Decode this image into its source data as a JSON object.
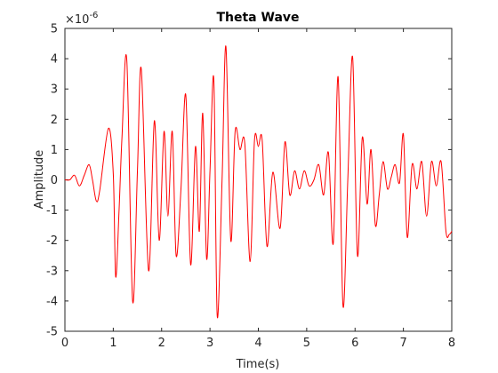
{
  "chart_data": {
    "type": "line",
    "title": "Theta Wave",
    "xlabel": "Time(s)",
    "ylabel": "Amplitude",
    "y_exponent_label": "×10",
    "y_exponent_power": "-6",
    "xlim": [
      0,
      8
    ],
    "ylim": [
      -5,
      5
    ],
    "grid": false,
    "x_ticks": [
      0,
      1,
      2,
      3,
      4,
      5,
      6,
      7,
      8
    ],
    "x_tick_labels": [
      "0",
      "1",
      "2",
      "3",
      "4",
      "5",
      "6",
      "7",
      "8"
    ],
    "y_ticks": [
      -5,
      -4,
      -3,
      -2,
      -1,
      0,
      1,
      2,
      3,
      4,
      5
    ],
    "y_tick_labels": [
      "-5",
      "-4",
      "-3",
      "-2",
      "-1",
      "0",
      "1",
      "2",
      "3",
      "4",
      "5"
    ],
    "series": [
      {
        "color": "#ff0000",
        "x": [
          0,
          0.1,
          0.2,
          0.3,
          0.4,
          0.5,
          0.57,
          0.65,
          0.72,
          0.9,
          1.0,
          1.05,
          1.12,
          1.18,
          1.28,
          1.4,
          1.5,
          1.58,
          1.73,
          1.85,
          1.95,
          2.05,
          2.13,
          2.22,
          2.3,
          2.4,
          2.5,
          2.6,
          2.7,
          2.78,
          2.85,
          2.93,
          3.0,
          3.08,
          3.15,
          3.25,
          3.33,
          3.43,
          3.52,
          3.62,
          3.72,
          3.83,
          3.92,
          4.0,
          4.08,
          4.18,
          4.3,
          4.45,
          4.55,
          4.65,
          4.75,
          4.85,
          4.95,
          5.05,
          5.15,
          5.25,
          5.35,
          5.45,
          5.55,
          5.65,
          5.75,
          5.85,
          5.95,
          6.05,
          6.15,
          6.25,
          6.33,
          6.42,
          6.5,
          6.58,
          6.67,
          6.75,
          6.83,
          6.92,
          7.0,
          7.08,
          7.18,
          7.28,
          7.38,
          7.48,
          7.58,
          7.68,
          7.78,
          7.88,
          7.95,
          8.0
        ],
        "y": [
          0,
          0.0,
          0.15,
          -0.2,
          0.15,
          0.5,
          0.0,
          -0.7,
          -0.35,
          1.7,
          0.2,
          -3.2,
          -1.0,
          1.4,
          3.95,
          -4.0,
          0.3,
          3.65,
          -3.0,
          1.95,
          -2.0,
          1.6,
          -1.2,
          1.6,
          -2.5,
          -0.3,
          2.8,
          -2.8,
          1.1,
          -1.7,
          2.2,
          -2.6,
          0.3,
          3.3,
          -4.5,
          0.0,
          4.4,
          -2.0,
          1.6,
          1.0,
          1.2,
          -2.7,
          1.3,
          1.1,
          1.3,
          -2.2,
          0.25,
          -1.6,
          1.25,
          -0.5,
          0.3,
          -0.3,
          0.3,
          -0.2,
          0.0,
          0.5,
          -0.5,
          0.9,
          -2.1,
          3.4,
          -4.15,
          0.0,
          4.05,
          -2.5,
          1.4,
          -0.8,
          1.0,
          -1.5,
          -0.5,
          0.6,
          -0.3,
          0.1,
          0.5,
          -0.1,
          1.5,
          -1.9,
          0.5,
          -0.3,
          0.6,
          -1.2,
          0.6,
          -0.2,
          0.6,
          -1.7,
          -1.8,
          -1.7
        ]
      }
    ]
  }
}
